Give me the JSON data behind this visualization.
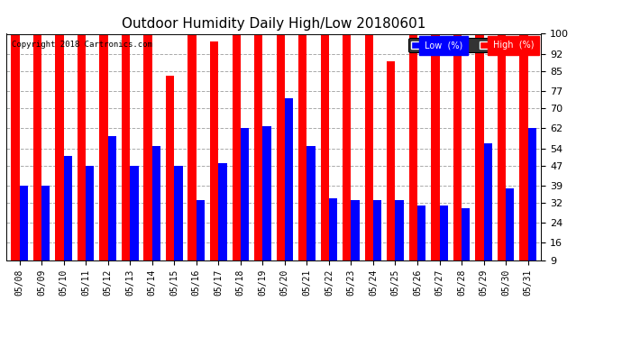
{
  "title": "Outdoor Humidity Daily High/Low 20180601",
  "copyright": "Copyright 2018 Cartronics.com",
  "dates": [
    "05/08",
    "05/09",
    "05/10",
    "05/11",
    "05/12",
    "05/13",
    "05/14",
    "05/15",
    "05/16",
    "05/17",
    "05/18",
    "05/19",
    "05/20",
    "05/21",
    "05/22",
    "05/23",
    "05/24",
    "05/25",
    "05/26",
    "05/27",
    "05/28",
    "05/29",
    "05/30",
    "05/31"
  ],
  "high": [
    100,
    100,
    100,
    100,
    100,
    100,
    100,
    83,
    100,
    97,
    100,
    100,
    100,
    100,
    100,
    100,
    100,
    89,
    100,
    100,
    100,
    100,
    100,
    100
  ],
  "low": [
    39,
    39,
    51,
    47,
    59,
    47,
    55,
    47,
    33,
    48,
    62,
    63,
    74,
    55,
    34,
    33,
    33,
    33,
    31,
    31,
    30,
    56,
    38,
    62
  ],
  "high_color": "#ff0000",
  "low_color": "#0000ff",
  "bg_color": "#ffffff",
  "grid_color": "#aaaaaa",
  "yticks": [
    9,
    16,
    24,
    32,
    39,
    47,
    54,
    62,
    70,
    77,
    85,
    92,
    100
  ],
  "ylim_min": 9,
  "ylim_max": 100,
  "legend_low_label": "Low  (%)",
  "legend_high_label": "High  (%)"
}
